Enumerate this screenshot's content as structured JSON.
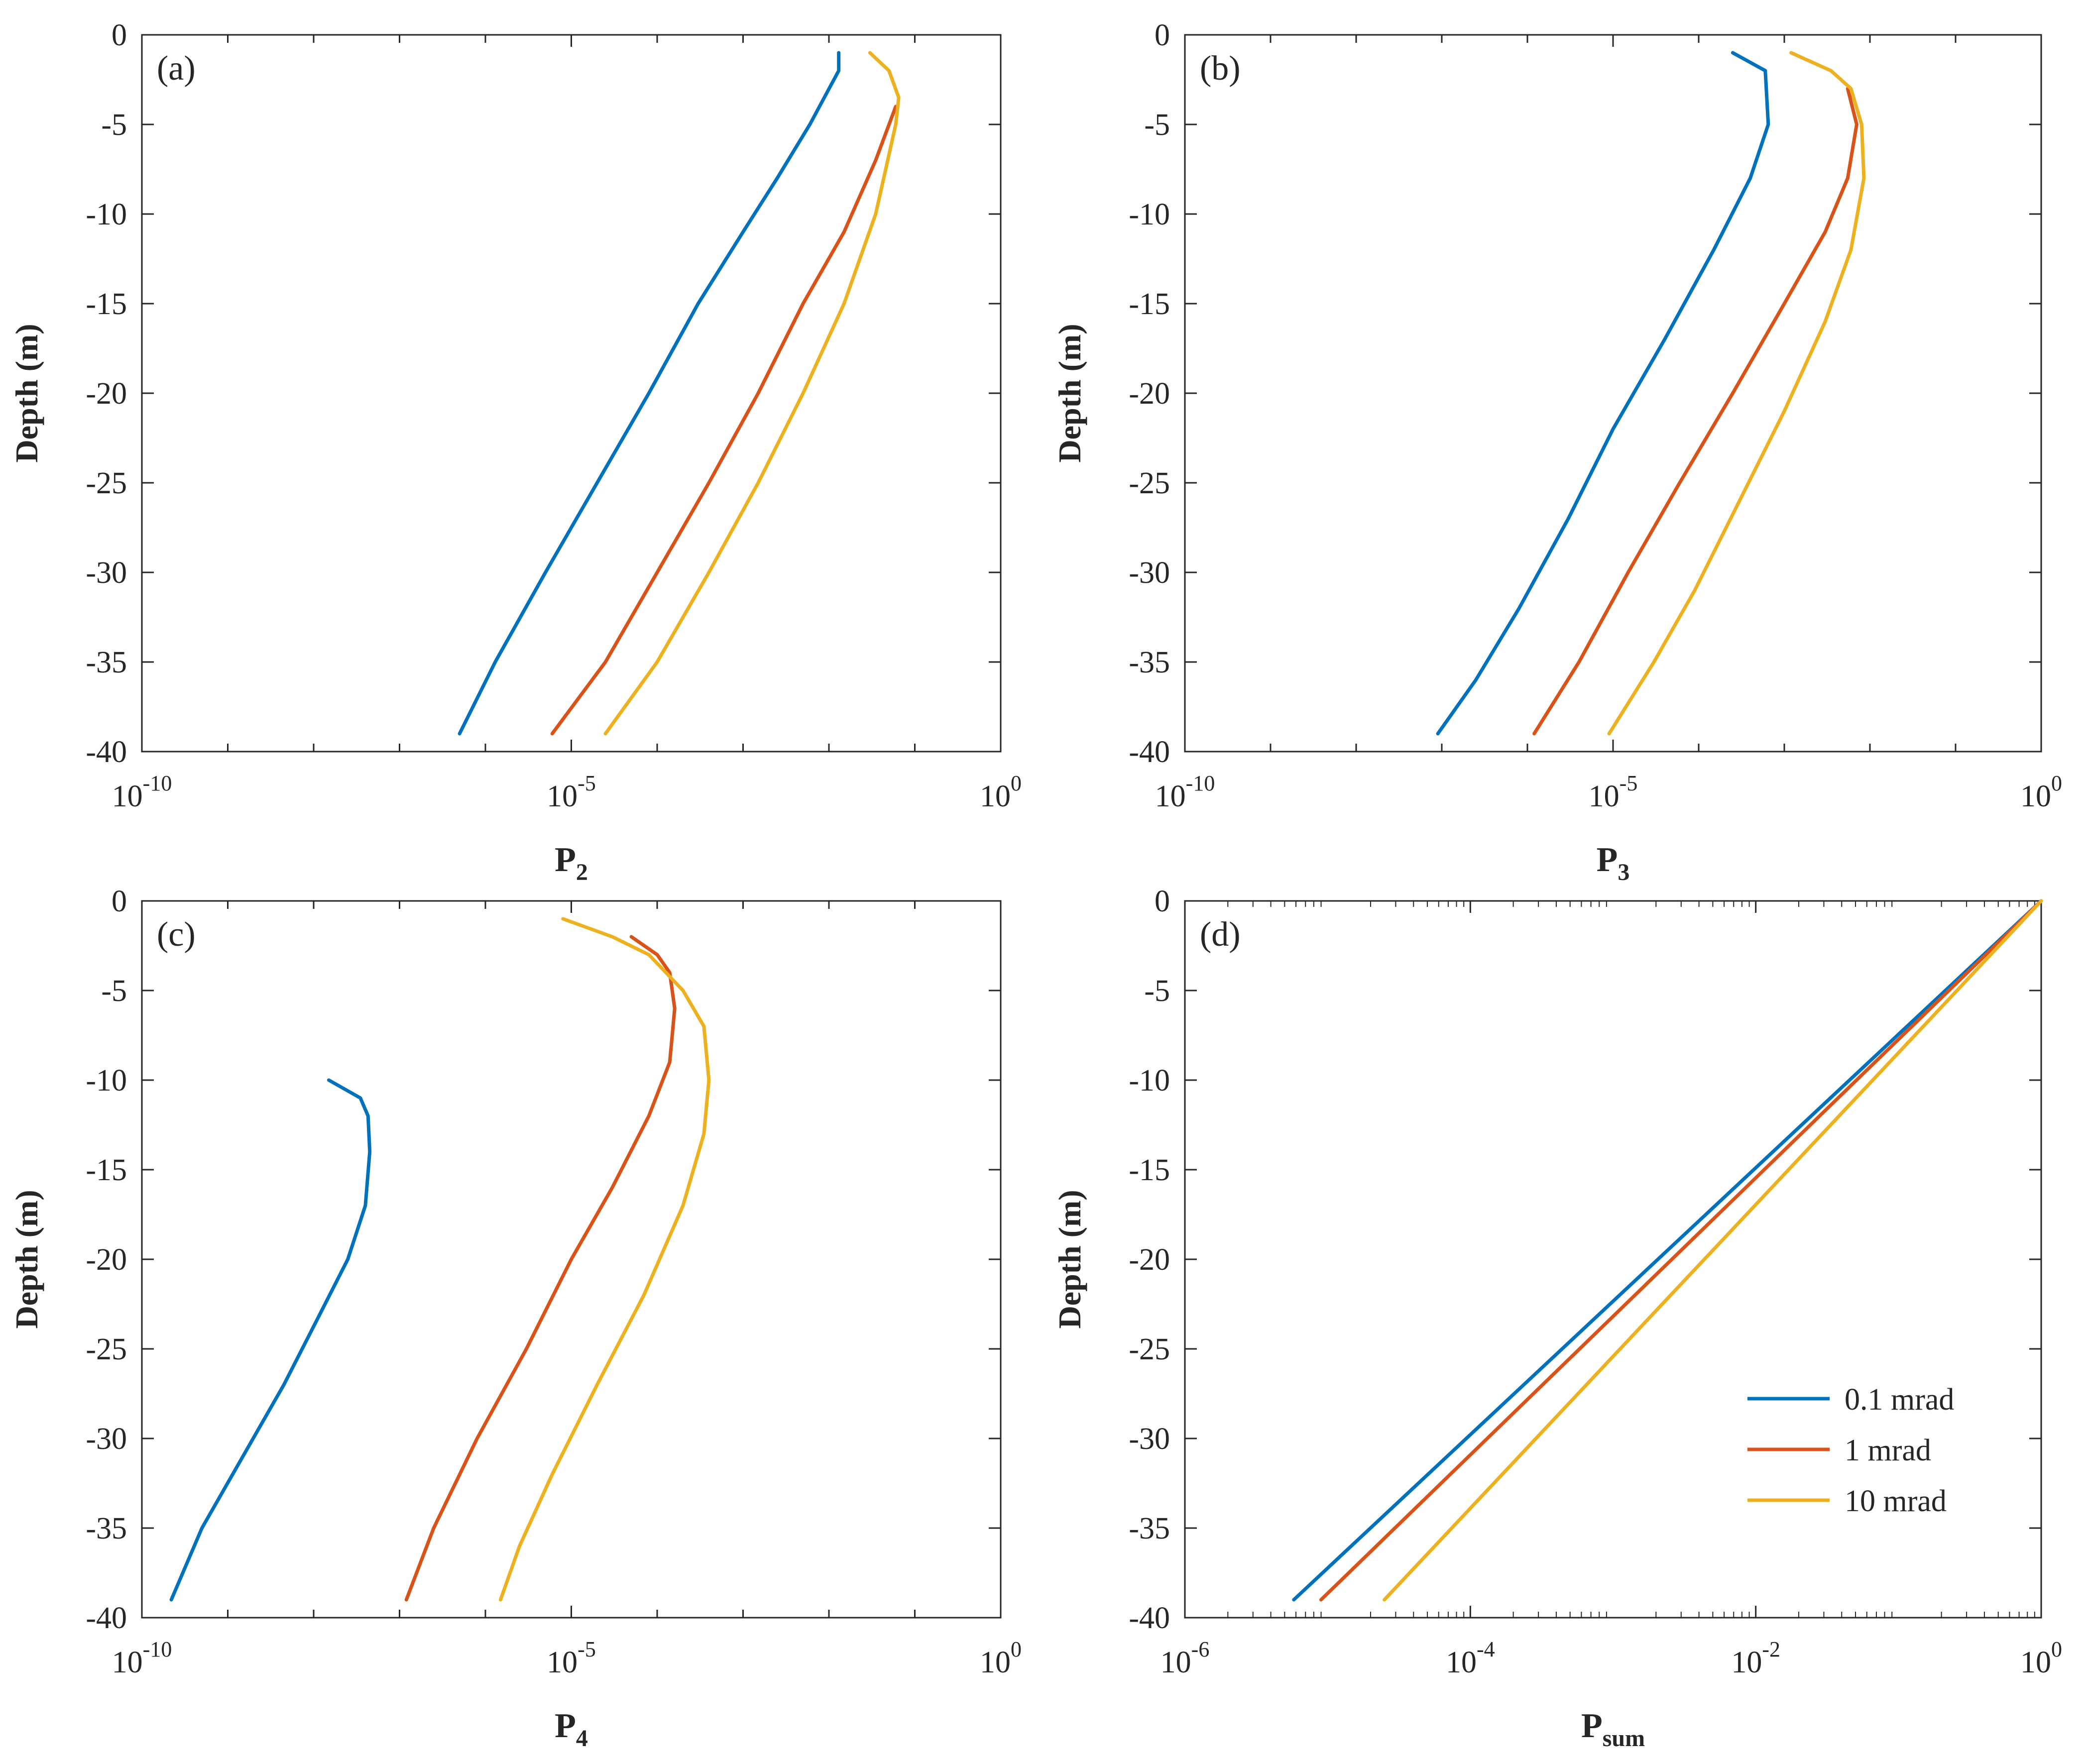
{
  "colors": {
    "series1": "#0072bd",
    "series2": "#d95319",
    "series3": "#edb120",
    "axis": "#262626"
  },
  "legend": {
    "panel": 3,
    "placement": "bottom-right",
    "entries": [
      "0.1 mrad",
      "1 mrad",
      "10 mrad"
    ]
  },
  "chart_data": [
    {
      "type": "line",
      "panel_label": "(a)",
      "xlabel": "P",
      "xlabel_sub": "2",
      "ylabel": "Depth (m)",
      "xscale": "log",
      "xlim": [
        1e-10,
        1
      ],
      "ylim": [
        -40,
        0
      ],
      "yticks": [
        "0",
        "-5",
        "-10",
        "-15",
        "-20",
        "-25",
        "-30",
        "-35",
        "-40"
      ],
      "xticks": [
        {
          "value": 1e-10,
          "base": "10",
          "exp": "-10"
        },
        {
          "value": 1e-05,
          "base": "10",
          "exp": "-5"
        },
        {
          "value": 1,
          "base": "10",
          "exp": "0"
        }
      ],
      "grid": false,
      "series": [
        {
          "name": "0.1 mrad",
          "color": "#0072bd",
          "points": [
            [
              0.013,
              -1
            ],
            [
              0.013,
              -2
            ],
            [
              0.006,
              -5
            ],
            [
              0.0025,
              -8
            ],
            [
              0.001,
              -11
            ],
            [
              0.0003,
              -15
            ],
            [
              8e-05,
              -20
            ],
            [
              2e-05,
              -25
            ],
            [
              5e-06,
              -30
            ],
            [
              1.3e-06,
              -35
            ],
            [
              5e-07,
              -39
            ]
          ]
        },
        {
          "name": "1 mrad",
          "color": "#d95319",
          "points": [
            [
              0.06,
              -4
            ],
            [
              0.035,
              -7
            ],
            [
              0.015,
              -11
            ],
            [
              0.005,
              -15
            ],
            [
              0.0015,
              -20
            ],
            [
              0.0004,
              -25
            ],
            [
              0.0001,
              -30
            ],
            [
              2.5e-05,
              -35
            ],
            [
              6e-06,
              -39
            ]
          ]
        },
        {
          "name": "10 mrad",
          "color": "#edb120",
          "points": [
            [
              0.03,
              -1
            ],
            [
              0.05,
              -2
            ],
            [
              0.065,
              -3.5
            ],
            [
              0.06,
              -5
            ],
            [
              0.035,
              -10
            ],
            [
              0.015,
              -15
            ],
            [
              0.005,
              -20
            ],
            [
              0.0015,
              -25
            ],
            [
              0.0004,
              -30
            ],
            [
              0.0001,
              -35
            ],
            [
              2.5e-05,
              -39
            ]
          ]
        }
      ]
    },
    {
      "type": "line",
      "panel_label": "(b)",
      "xlabel": "P",
      "xlabel_sub": "3",
      "ylabel": "Depth (m)",
      "xscale": "log",
      "xlim": [
        1e-10,
        1
      ],
      "ylim": [
        -40,
        0
      ],
      "yticks": [
        "0",
        "-5",
        "-10",
        "-15",
        "-20",
        "-25",
        "-30",
        "-35",
        "-40"
      ],
      "xticks": [
        {
          "value": 1e-10,
          "base": "10",
          "exp": "-10"
        },
        {
          "value": 1e-05,
          "base": "10",
          "exp": "-5"
        },
        {
          "value": 1,
          "base": "10",
          "exp": "0"
        }
      ],
      "grid": false,
      "series": [
        {
          "name": "0.1 mrad",
          "color": "#0072bd",
          "points": [
            [
              0.00025,
              -1
            ],
            [
              0.0006,
              -2
            ],
            [
              0.00065,
              -5
            ],
            [
              0.0004,
              -8
            ],
            [
              0.00015,
              -12
            ],
            [
              4e-05,
              -17
            ],
            [
              1e-05,
              -22
            ],
            [
              3e-06,
              -27
            ],
            [
              8e-07,
              -32
            ],
            [
              2.5e-07,
              -36
            ],
            [
              9e-08,
              -39
            ]
          ]
        },
        {
          "name": "1 mrad",
          "color": "#d95319",
          "points": [
            [
              0.0055,
              -3
            ],
            [
              0.007,
              -5
            ],
            [
              0.0055,
              -8
            ],
            [
              0.003,
              -11
            ],
            [
              0.001,
              -15
            ],
            [
              0.00025,
              -20
            ],
            [
              6e-05,
              -25
            ],
            [
              1.5e-05,
              -30
            ],
            [
              4e-06,
              -35
            ],
            [
              1.2e-06,
              -39
            ]
          ]
        },
        {
          "name": "10 mrad",
          "color": "#edb120",
          "points": [
            [
              0.0012,
              -1
            ],
            [
              0.0035,
              -2
            ],
            [
              0.006,
              -3
            ],
            [
              0.008,
              -5
            ],
            [
              0.0085,
              -8
            ],
            [
              0.006,
              -12
            ],
            [
              0.003,
              -16
            ],
            [
              0.001,
              -21
            ],
            [
              0.0003,
              -26
            ],
            [
              9e-05,
              -31
            ],
            [
              3e-05,
              -35
            ],
            [
              9e-06,
              -39
            ]
          ]
        }
      ]
    },
    {
      "type": "line",
      "panel_label": "(c)",
      "xlabel": "P",
      "xlabel_sub": "4",
      "ylabel": "Depth (m)",
      "xscale": "log",
      "xlim": [
        1e-10,
        1
      ],
      "ylim": [
        -40,
        0
      ],
      "yticks": [
        "0",
        "-5",
        "-10",
        "-15",
        "-20",
        "-25",
        "-30",
        "-35",
        "-40"
      ],
      "xticks": [
        {
          "value": 1e-10,
          "base": "10",
          "exp": "-10"
        },
        {
          "value": 1e-05,
          "base": "10",
          "exp": "-5"
        },
        {
          "value": 1,
          "base": "10",
          "exp": "0"
        }
      ],
      "grid": false,
      "series": [
        {
          "name": "0.1 mrad",
          "color": "#0072bd",
          "points": [
            [
              1.5e-08,
              -10
            ],
            [
              3.5e-08,
              -11
            ],
            [
              4.3e-08,
              -12
            ],
            [
              4.5e-08,
              -14
            ],
            [
              4e-08,
              -17
            ],
            [
              2.5e-08,
              -20
            ],
            [
              1.2e-08,
              -23
            ],
            [
              4.5e-09,
              -27
            ],
            [
              1.5e-09,
              -31
            ],
            [
              5e-10,
              -35
            ],
            [
              2.2e-10,
              -39
            ]
          ]
        },
        {
          "name": "1 mrad",
          "color": "#d95319",
          "points": [
            [
              5e-05,
              -2
            ],
            [
              0.0001,
              -3
            ],
            [
              0.00014,
              -4
            ],
            [
              0.00016,
              -6
            ],
            [
              0.00014,
              -9
            ],
            [
              8e-05,
              -12
            ],
            [
              3e-05,
              -16
            ],
            [
              1e-05,
              -20
            ],
            [
              3e-06,
              -25
            ],
            [
              8e-07,
              -30
            ],
            [
              2.5e-07,
              -35
            ],
            [
              1.2e-07,
              -39
            ]
          ]
        },
        {
          "name": "10 mrad",
          "color": "#edb120",
          "points": [
            [
              8e-06,
              -1
            ],
            [
              3e-05,
              -2
            ],
            [
              8e-05,
              -3
            ],
            [
              0.0002,
              -5
            ],
            [
              0.00035,
              -7
            ],
            [
              0.0004,
              -10
            ],
            [
              0.00035,
              -13
            ],
            [
              0.0002,
              -17
            ],
            [
              7e-05,
              -22
            ],
            [
              2e-05,
              -27
            ],
            [
              6e-06,
              -32
            ],
            [
              2.5e-06,
              -36
            ],
            [
              1.5e-06,
              -39
            ]
          ]
        }
      ]
    },
    {
      "type": "line",
      "panel_label": "(d)",
      "xlabel": "P",
      "xlabel_sub": "sum",
      "ylabel": "Depth (m)",
      "xscale": "log",
      "xlim": [
        1e-06,
        1
      ],
      "ylim": [
        -40,
        0
      ],
      "yticks": [
        "0",
        "-5",
        "-10",
        "-15",
        "-20",
        "-25",
        "-30",
        "-35",
        "-40"
      ],
      "xticks": [
        {
          "value": 1e-06,
          "base": "10",
          "exp": "-6"
        },
        {
          "value": 0.0001,
          "base": "10",
          "exp": "-4"
        },
        {
          "value": 0.01,
          "base": "10",
          "exp": "-2"
        },
        {
          "value": 1,
          "base": "10",
          "exp": "0"
        }
      ],
      "grid": false,
      "series": [
        {
          "name": "0.1 mrad",
          "color": "#0072bd",
          "points": [
            [
              1,
              0
            ],
            [
              5.8e-06,
              -39
            ]
          ]
        },
        {
          "name": "1 mrad",
          "color": "#d95319",
          "points": [
            [
              1,
              0
            ],
            [
              9e-06,
              -39
            ]
          ]
        },
        {
          "name": "10 mrad",
          "color": "#edb120",
          "points": [
            [
              1,
              0
            ],
            [
              2.5e-05,
              -39
            ]
          ]
        }
      ]
    }
  ]
}
